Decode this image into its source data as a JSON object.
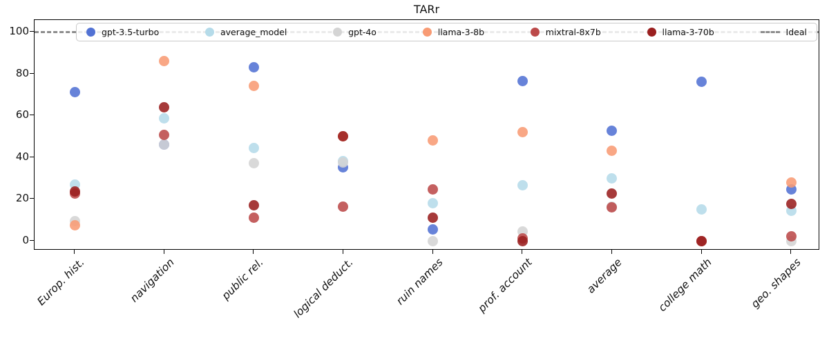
{
  "chart_data": {
    "type": "scatter",
    "title": "TARr",
    "categories": [
      "Europ. hist.",
      "navigation",
      "public rel.",
      "logical deduct.",
      "ruin names",
      "prof. account",
      "average",
      "college math",
      "geo. shapes"
    ],
    "series": [
      {
        "name": "gpt-3.5-turbo",
        "color": "#5272d4",
        "values": [
          71,
          46,
          83,
          35,
          5.5,
          76.5,
          52.5,
          76,
          24.5
        ]
      },
      {
        "name": "average_model",
        "color": "#b5dbe9",
        "values": [
          27,
          58.5,
          44.5,
          38,
          18,
          26.5,
          30,
          15,
          14.5
        ]
      },
      {
        "name": "gpt-4o",
        "color": "#d4d4d4",
        "values": [
          9.5,
          46,
          37,
          37.5,
          0,
          4.5,
          16.5,
          0,
          0
        ]
      },
      {
        "name": "llama-3-8b",
        "color": "#f89b74",
        "values": [
          7.5,
          86,
          74,
          50,
          48,
          52,
          43,
          0,
          28
        ]
      },
      {
        "name": "mixtral-8x7b",
        "color": "#bc4a4a",
        "values": [
          22.5,
          50.5,
          11,
          16.5,
          24.5,
          1,
          16,
          0,
          2
        ]
      },
      {
        "name": "llama-3-70b",
        "color": "#9a1f1f",
        "values": [
          23.5,
          64,
          17,
          50,
          11,
          0,
          22.5,
          0,
          17.5
        ]
      }
    ],
    "ideal": {
      "label": "Ideal",
      "value": 100,
      "color": "#8c8c8c",
      "style": "dashed"
    },
    "ylim": [
      -4,
      107
    ],
    "yticks": [
      0,
      20,
      40,
      60,
      80,
      100
    ],
    "legend_position": "top",
    "grid": false
  }
}
